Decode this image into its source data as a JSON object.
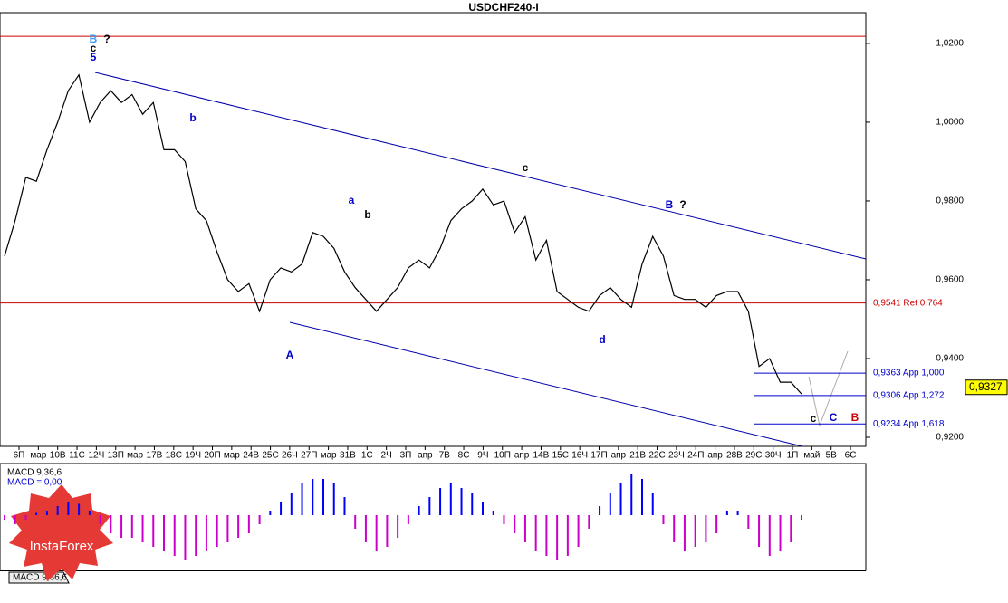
{
  "chart_data": {
    "type": "line",
    "title": "USDCHF240-I",
    "color": "#000000",
    "values": [
      0.966,
      0.975,
      0.986,
      0.985,
      0.993,
      1.0,
      1.008,
      1.012,
      1.0,
      1.005,
      1.008,
      1.005,
      1.007,
      1.002,
      1.005,
      0.993,
      0.993,
      0.99,
      0.978,
      0.975,
      0.967,
      0.96,
      0.957,
      0.959,
      0.952,
      0.96,
      0.963,
      0.962,
      0.964,
      0.972,
      0.971,
      0.968,
      0.962,
      0.958,
      0.955,
      0.952,
      0.955,
      0.958,
      0.963,
      0.965,
      0.963,
      0.968,
      0.975,
      0.978,
      0.98,
      0.983,
      0.979,
      0.98,
      0.972,
      0.976,
      0.965,
      0.97,
      0.957,
      0.955,
      0.953,
      0.952,
      0.956,
      0.958,
      0.955,
      0.953,
      0.964,
      0.971,
      0.966,
      0.956,
      0.955,
      0.955,
      0.953,
      0.956,
      0.957,
      0.957,
      0.952,
      0.938,
      0.94,
      0.934,
      0.934,
      0.931
    ],
    "ylim": [
      0.9177,
      1.0278
    ],
    "yticks": [
      {
        "value": 0.92,
        "label": "0,9200"
      },
      {
        "value": 0.94,
        "label": "0,9400"
      },
      {
        "value": 0.96,
        "label": "0,9600"
      },
      {
        "value": 0.98,
        "label": "0,9800"
      },
      {
        "value": 1.0,
        "label": "1,0000"
      },
      {
        "value": 1.02,
        "label": "1,0200"
      }
    ],
    "xtick_labels": [
      "6П",
      "мар",
      "10В",
      "11С",
      "12Ч",
      "13П",
      "мар",
      "17В",
      "18С",
      "19Ч",
      "20П",
      "мар",
      "24В",
      "25С",
      "26Ч",
      "27П",
      "мар",
      "31В",
      "1С",
      "2Ч",
      "3П",
      "апр",
      "7В",
      "8С",
      "9Ч",
      "10П",
      "апр",
      "14В",
      "15С",
      "16Ч",
      "17П",
      "апр",
      "21В",
      "22С",
      "23Ч",
      "24П",
      "апр",
      "28В",
      "29С",
      "30Ч",
      "1П",
      "май",
      "5В",
      "6С"
    ],
    "levels": [
      {
        "value": 1.0218,
        "color": "#cc0000"
      },
      {
        "value": 0.9541,
        "label": "0,9541 Ret 0,764",
        "color": "#cc0000"
      },
      {
        "value": 0.9363,
        "label": "0,9363 App 1,000",
        "color": "#0000cc"
      },
      {
        "value": 0.9306,
        "label": "0,9306 App 1,272",
        "color": "#0000cc"
      },
      {
        "value": 0.9234,
        "label": "0,9234 App 1,618",
        "color": "#0000cc"
      }
    ],
    "current_price": {
      "value": 0.9327,
      "label": "0,9327"
    },
    "annotations": [
      "B",
      "c",
      "5",
      "?",
      "A",
      "a",
      "b",
      "c",
      "B",
      "?",
      "c",
      "C",
      "B",
      "b",
      "d"
    ],
    "macd": {
      "label": "MACD 9,36,6",
      "value_text": "MACD = 0,00",
      "tab": "MACD 9,36,6",
      "ylim": [
        -11,
        11
      ],
      "values": [
        -1,
        -2,
        -1,
        0.5,
        1,
        2,
        3,
        2.5,
        1,
        -2,
        -4,
        -5,
        -5,
        -6,
        -7,
        -8,
        -9,
        -10,
        -9,
        -8,
        -7,
        -6,
        -5,
        -4,
        -2,
        1,
        3,
        5,
        7,
        8,
        8,
        7,
        4,
        -3,
        -6,
        -8,
        -7,
        -5,
        -2,
        2,
        4,
        6,
        7,
        6,
        5,
        3,
        1,
        -2,
        -4,
        -6,
        -8,
        -9,
        -10,
        -9,
        -7,
        -3,
        2,
        5,
        7,
        9,
        8,
        5,
        -2,
        -6,
        -8,
        -7,
        -6,
        -4,
        1,
        1,
        -3,
        -7,
        -9,
        -8,
        -6,
        -1
      ]
    },
    "brand": "InstaForex"
  }
}
